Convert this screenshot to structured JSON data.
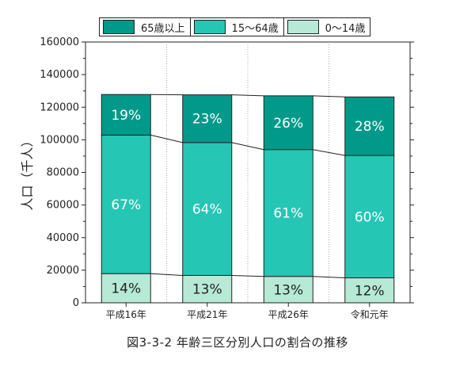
{
  "chart_data": {
    "type": "bar",
    "stacked": true,
    "categories": [
      "平成16年",
      "平成21年",
      "平成26年",
      "令和元年"
    ],
    "series": [
      {
        "name": "0～14歳",
        "color": "#b6e9d6",
        "values": [
          17900,
          16800,
          16200,
          15300
        ],
        "labels": [
          "14%",
          "13%",
          "13%",
          "12%"
        ]
      },
      {
        "name": "15～64歳",
        "color": "#26c6b4",
        "values": [
          85000,
          81500,
          77800,
          75100
        ],
        "labels": [
          "67%",
          "64%",
          "61%",
          "60%"
        ]
      },
      {
        "name": "65歳以上",
        "color": "#019a8a",
        "values": [
          24900,
          29300,
          33000,
          35900
        ],
        "labels": [
          "19%",
          "23%",
          "26%",
          "28%"
        ]
      }
    ],
    "ylabel": "人口（千人）",
    "ylim": [
      0,
      160000
    ],
    "yticks": [
      0,
      20000,
      40000,
      60000,
      80000,
      100000,
      120000,
      140000,
      160000
    ],
    "legend_order": [
      "65歳以上",
      "15～64歳",
      "0～14歳"
    ],
    "legend_position": "top",
    "connector_lines": true
  },
  "caption": "図3-3-2  年齢三区分別人口の割合の推移"
}
